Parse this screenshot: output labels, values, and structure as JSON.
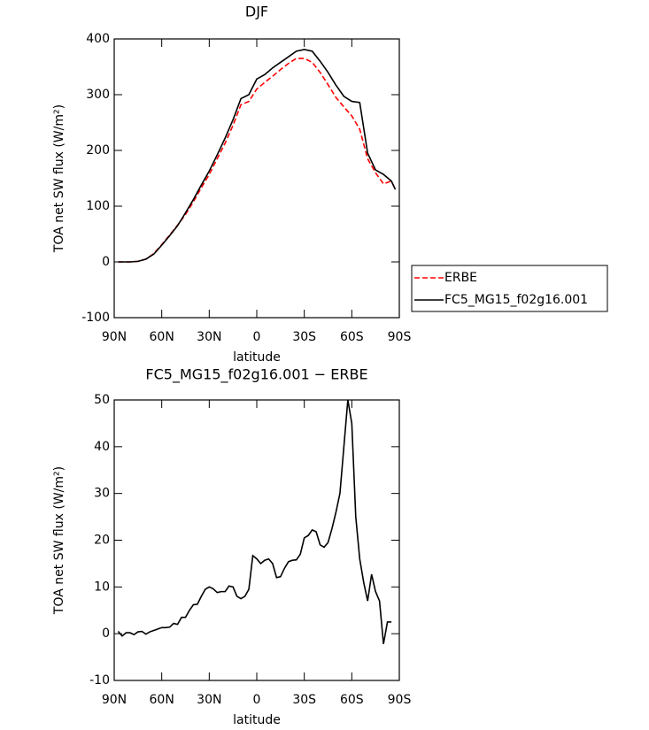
{
  "chart_data": [
    {
      "type": "line",
      "title": "DJF",
      "xlabel": "latitude",
      "ylabel": "TOA net SW flux (W/m²)",
      "x": [
        87.5,
        85,
        80,
        75,
        70,
        65,
        60,
        55,
        50,
        45,
        40,
        35,
        30,
        25,
        20,
        15,
        10,
        5,
        0,
        -5,
        -10,
        -15,
        -20,
        -25,
        -30,
        -35,
        -40,
        -45,
        -50,
        -55,
        -60,
        -65,
        -70,
        -75,
        -80,
        -85,
        -87.5
      ],
      "series": [
        {
          "name": "ERBE",
          "color": "#ff0000",
          "dash": "dashed",
          "values": [
            0,
            0,
            0,
            1,
            5,
            15,
            31,
            48,
            66,
            85,
            108,
            133,
            157,
            185,
            213,
            245,
            282,
            288,
            310,
            322,
            333,
            345,
            356,
            365,
            365,
            358,
            340,
            318,
            295,
            278,
            262,
            238,
            185,
            160,
            140,
            145,
            130
          ]
        },
        {
          "name": "FC5_MG15_f02g16.001",
          "color": "#000000",
          "dash": "solid",
          "values": [
            0,
            0,
            0,
            1,
            5,
            14,
            30,
            47,
            65,
            88,
            112,
            138,
            163,
            192,
            222,
            255,
            293,
            300,
            328,
            336,
            348,
            358,
            368,
            378,
            381,
            378,
            360,
            340,
            317,
            297,
            288,
            286,
            195,
            165,
            157,
            145,
            130
          ]
        }
      ],
      "xlim": [
        90,
        -90
      ],
      "xticks": [
        {
          "value": 90,
          "label": "90N"
        },
        {
          "value": 60,
          "label": "60N"
        },
        {
          "value": 30,
          "label": "30N"
        },
        0,
        {
          "value": -30,
          "label": "30S"
        },
        {
          "value": -60,
          "label": "60S"
        },
        {
          "value": -90,
          "label": "90S"
        }
      ],
      "ylim": [
        -100,
        400
      ],
      "yticks": [
        -100,
        0,
        100,
        200,
        300,
        400
      ],
      "legend": "right"
    },
    {
      "type": "line",
      "title": "FC5_MG15_f02g16.001 − ERBE",
      "xlabel": "latitude",
      "ylabel": "TOA net SW flux (W/m²)",
      "x": [
        87.5,
        85,
        82.5,
        80,
        77.5,
        75,
        72.5,
        70,
        67.5,
        65,
        62.5,
        60,
        57.5,
        55,
        52.5,
        50,
        47.5,
        45,
        42.5,
        40,
        37.5,
        35,
        32.5,
        30,
        27.5,
        25,
        22.5,
        20,
        17.5,
        15,
        12.5,
        10,
        7.5,
        5,
        2.5,
        0,
        -2.5,
        -5,
        -7.5,
        -10,
        -12.5,
        -15,
        -17.5,
        -20,
        -22.5,
        -25,
        -27.5,
        -30,
        -32.5,
        -35,
        -37.5,
        -40,
        -42.5,
        -45,
        -47.5,
        -50,
        -52.5,
        -55,
        -57.5,
        -60,
        -62.5,
        -65,
        -67.5,
        -70,
        -72.5,
        -75,
        -77.5,
        -80,
        -82.5,
        -85
      ],
      "series": [
        {
          "name": "FC5_MG15_f02g16.001 − ERBE",
          "color": "#000000",
          "dash": "solid",
          "values": [
            0.5,
            -0.5,
            0.2,
            0.2,
            -0.2,
            0.4,
            0.5,
            -0.1,
            0.4,
            0.7,
            1,
            1.3,
            1.3,
            1.4,
            2.2,
            2,
            3.5,
            3.5,
            5,
            6.2,
            6.3,
            8,
            9.5,
            10,
            9.6,
            8.8,
            9,
            9,
            10.2,
            10,
            8,
            7.5,
            8,
            9.5,
            16.7,
            16,
            15,
            15.7,
            16,
            15,
            12,
            12.2,
            14,
            15.4,
            15.7,
            15.8,
            17,
            20.5,
            21,
            22.2,
            21.8,
            19,
            18.5,
            19.5,
            22.5,
            26,
            30,
            40,
            50,
            45,
            25,
            16,
            11,
            7,
            12.7,
            9,
            7,
            -2.2,
            2.5,
            2.5
          ]
        }
      ],
      "xlim": [
        90,
        -90
      ],
      "xticks": [
        {
          "value": 90,
          "label": "90N"
        },
        {
          "value": 60,
          "label": "60N"
        },
        {
          "value": 30,
          "label": "30N"
        },
        0,
        {
          "value": -30,
          "label": "30S"
        },
        {
          "value": -60,
          "label": "60S"
        },
        {
          "value": -90,
          "label": "90S"
        }
      ],
      "ylim": [
        -10,
        50
      ],
      "yticks": [
        -10,
        0,
        10,
        20,
        30,
        40,
        50
      ]
    }
  ]
}
